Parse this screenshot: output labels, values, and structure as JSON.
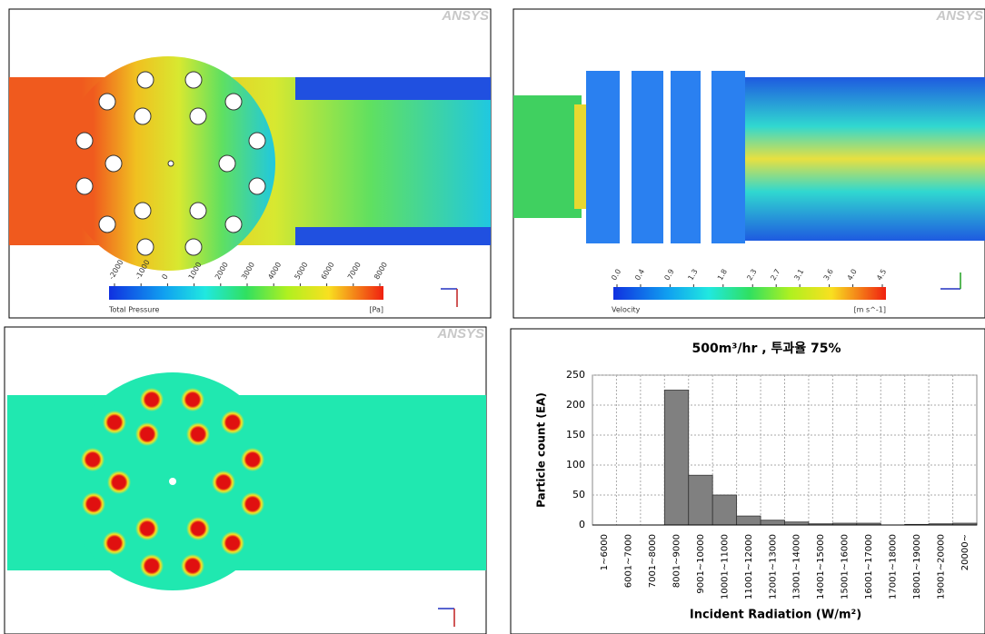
{
  "chart_data": [
    {
      "type": "contour",
      "logo": "ANSYS",
      "colorbar_label": "Total Pressure",
      "colorbar_unit": "[Pa]",
      "clim": [
        -2000,
        8000
      ],
      "colorbar_ticks": [
        -2000,
        -1000,
        0,
        1000,
        2000,
        3000,
        4000,
        5000,
        6000,
        7000,
        8000
      ]
    },
    {
      "type": "contour",
      "logo": "ANSYS",
      "colorbar_label": "Velocity",
      "colorbar_unit": "[m s^-1]",
      "clim": [
        0,
        4.5
      ],
      "colorbar_ticks": [
        {
          "value": 0,
          "label": "0.0"
        },
        0.4,
        0.9,
        1.3,
        1.8,
        2.3,
        2.7,
        3.1,
        3.6,
        {
          "value": 4,
          "label": "4.0"
        },
        4.5
      ]
    },
    {
      "type": "contour",
      "logo": "ANSYS"
    },
    {
      "type": "bar",
      "title": "500m³/hr , 투과율 75%",
      "x_label": "Incident Radiation (W/m²)",
      "y_label": "Particle count (EA)",
      "categories": [
        "1~6000",
        "6001~7000",
        "7001~8000",
        "8001~9000",
        "9001~10000",
        "10001~11000",
        "11001~12000",
        "12001~13000",
        "13001~14000",
        "14001~15000",
        "15001~16000",
        "16001~17000",
        "17001~18000",
        "18001~19000",
        "19001~20000",
        "20000~"
      ],
      "values": [
        0,
        0,
        0,
        225,
        83,
        50,
        15,
        8,
        5,
        2,
        3,
        3,
        0,
        1,
        2,
        3
      ],
      "color": "#808080",
      "ylim": [
        0,
        250
      ],
      "yticks": [
        0,
        50,
        100,
        150,
        200,
        250
      ],
      "grid": true
    }
  ]
}
